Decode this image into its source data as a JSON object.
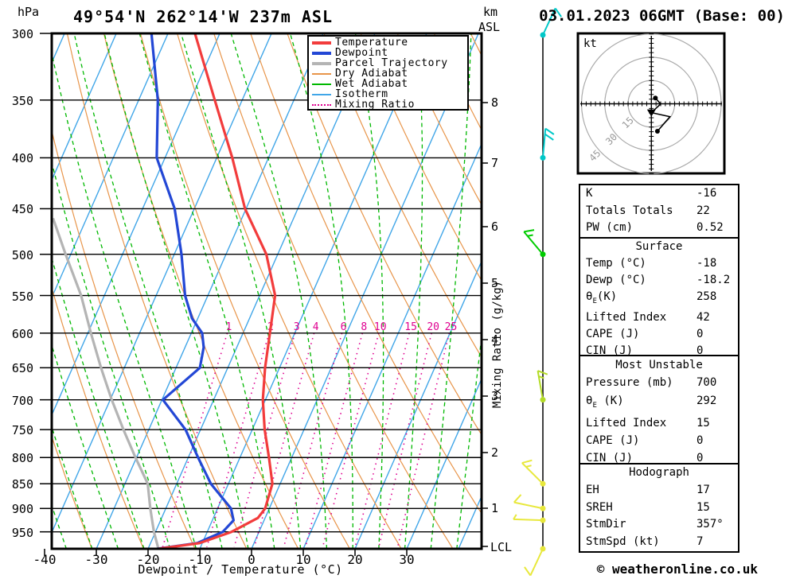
{
  "header": {
    "pressure_unit": "hPa",
    "title": "49°54'N 262°14'W 237m ASL",
    "km_unit": "km",
    "asl": "ASL",
    "datetime": "03.01.2023 06GMT (Base: 00)"
  },
  "footer": {
    "credit": "© weatheronline.co.uk"
  },
  "legend": [
    {
      "label": "Temperature",
      "color": "#f23c3c",
      "thick": true,
      "dotted": false
    },
    {
      "label": "Dewpoint",
      "color": "#2347d5",
      "thick": true,
      "dotted": false
    },
    {
      "label": "Parcel Trajectory",
      "color": "#b4b4b4",
      "thick": true,
      "dotted": false
    },
    {
      "label": "Dry Adiabat",
      "color": "#e8954a",
      "thick": false,
      "dotted": false
    },
    {
      "label": "Wet Adiabat",
      "color": "#00b800",
      "thick": false,
      "dotted": false
    },
    {
      "label": "Isotherm",
      "color": "#41a6e8",
      "thick": false,
      "dotted": false
    },
    {
      "label": "Mixing Ratio",
      "color": "#df0090",
      "thick": false,
      "dotted": true
    }
  ],
  "axes": {
    "pressure_ticks": [
      300,
      350,
      400,
      450,
      500,
      550,
      600,
      650,
      700,
      750,
      800,
      850,
      900,
      950
    ],
    "temp_ticks": [
      -40,
      -30,
      -20,
      -10,
      0,
      10,
      20,
      30
    ],
    "xlabel": "Dewpoint / Temperature (°C)",
    "mixing_axis_label": "Mixing Ratio (g/kg)",
    "km_ticks": [
      8,
      7,
      6,
      5,
      4,
      3,
      2,
      1
    ],
    "lcl_label": "LCL"
  },
  "chart_data": {
    "type": "line",
    "chart_kind": "skew-t-log-p-sounding",
    "pressure_axis": {
      "unit": "hPa",
      "top": 300,
      "surface": 988,
      "ticks": [
        300,
        350,
        400,
        450,
        500,
        550,
        600,
        650,
        700,
        750,
        800,
        850,
        900,
        950
      ]
    },
    "temp_axis": {
      "unit": "°C",
      "min": -40,
      "max": 30,
      "ticks": [
        -40,
        -30,
        -20,
        -10,
        0,
        10,
        20,
        30
      ]
    },
    "isotherm_step": 10,
    "dry_adiabat_step": 10,
    "wet_adiabat_step": 5,
    "series": [
      {
        "name": "Temperature",
        "color": "#f23c3c",
        "points": [
          [
            300,
            -54.8
          ],
          [
            350,
            -45.3
          ],
          [
            400,
            -37.0
          ],
          [
            450,
            -30.2
          ],
          [
            500,
            -22.2
          ],
          [
            550,
            -17.0
          ],
          [
            600,
            -14.8
          ],
          [
            650,
            -12.8
          ],
          [
            700,
            -10.5
          ],
          [
            750,
            -7.6
          ],
          [
            800,
            -4.4
          ],
          [
            850,
            -1.5
          ],
          [
            900,
            -0.8
          ],
          [
            920,
            -1.4
          ],
          [
            950,
            -5.3
          ],
          [
            975,
            -10.5
          ],
          [
            988,
            -18.0
          ]
        ]
      },
      {
        "name": "Dewpoint",
        "color": "#2347d5",
        "points": [
          [
            300,
            -63.2
          ],
          [
            350,
            -56.3
          ],
          [
            400,
            -51.6
          ],
          [
            450,
            -43.8
          ],
          [
            500,
            -38.6
          ],
          [
            550,
            -34.4
          ],
          [
            580,
            -31.1
          ],
          [
            600,
            -27.9
          ],
          [
            620,
            -26.4
          ],
          [
            650,
            -25.4
          ],
          [
            700,
            -29.8
          ],
          [
            750,
            -22.9
          ],
          [
            800,
            -18.1
          ],
          [
            850,
            -13.4
          ],
          [
            900,
            -7.4
          ],
          [
            925,
            -5.9
          ],
          [
            950,
            -7.0
          ],
          [
            975,
            -11.0
          ],
          [
            988,
            -18.2
          ]
        ]
      },
      {
        "name": "Parcel Trajectory",
        "color": "#b4b4b4",
        "points": [
          [
            988,
            -18.0
          ],
          [
            950,
            -20.3
          ],
          [
            900,
            -23.0
          ],
          [
            850,
            -25.6
          ],
          [
            800,
            -30.2
          ],
          [
            750,
            -34.9
          ],
          [
            700,
            -39.7
          ],
          [
            650,
            -44.5
          ],
          [
            600,
            -49.4
          ],
          [
            550,
            -54.5
          ],
          [
            500,
            -61.0
          ],
          [
            460,
            -66.5
          ]
        ]
      }
    ],
    "mixing_ratio_lines": {
      "values": [
        1,
        2,
        3,
        4,
        6,
        8,
        10,
        15,
        20,
        25
      ],
      "label_pressure": 600,
      "color": "#df0090"
    },
    "km_axis": {
      "unit": "km",
      "labels": [
        8,
        7,
        6,
        5,
        4,
        3,
        2,
        1
      ],
      "lcl": "LCL"
    },
    "wind_barbs": [
      {
        "p": 300,
        "speed_kt": 15,
        "dir_deg": 25,
        "color": "#00c8c8"
      },
      {
        "p": 400,
        "speed_kt": 20,
        "dir_deg": 5,
        "color": "#00c8c8"
      },
      {
        "p": 500,
        "speed_kt": 15,
        "dir_deg": 320,
        "color": "#00cc00"
      },
      {
        "p": 700,
        "speed_kt": 15,
        "dir_deg": 350,
        "color": "#b4dc28"
      },
      {
        "p": 850,
        "speed_kt": 15,
        "dir_deg": 315,
        "color": "#e8e83c"
      },
      {
        "p": 900,
        "speed_kt": 10,
        "dir_deg": 282,
        "color": "#e8e83c"
      },
      {
        "p": 925,
        "speed_kt": 5,
        "dir_deg": 272,
        "color": "#e8e83c"
      },
      {
        "p": 988,
        "speed_kt": 10,
        "dir_deg": 205,
        "color": "#e8e83c"
      }
    ],
    "hodograph": {
      "unit": "kt",
      "rings_kt": [
        15,
        30,
        45
      ],
      "trace_uv_kt": [
        [
          2.6,
          3.7
        ],
        [
          6.0,
          -0.1
        ],
        [
          0.0,
          -5.7
        ],
        [
          12.0,
          -8.3
        ],
        [
          3.9,
          -17.7
        ]
      ],
      "storm_point_index": 2
    }
  },
  "tables": {
    "sections": [
      {
        "title": null,
        "rows": [
          [
            "K",
            "-16"
          ],
          [
            "Totals Totals",
            "22"
          ],
          [
            "PW (cm)",
            "0.52"
          ]
        ]
      },
      {
        "title": "Surface",
        "rows": [
          [
            "Temp (°C)",
            "-18"
          ],
          [
            "Dewp (°C)",
            "-18.2"
          ],
          [
            "θ_E(K)",
            "258"
          ],
          [
            "Lifted Index",
            "42"
          ],
          [
            "CAPE (J)",
            "0"
          ],
          [
            "CIN (J)",
            "0"
          ]
        ]
      },
      {
        "title": "Most Unstable",
        "rows": [
          [
            "Pressure (mb)",
            "700"
          ],
          [
            "θ_E (K)",
            "292"
          ],
          [
            "Lifted Index",
            "15"
          ],
          [
            "CAPE (J)",
            "0"
          ],
          [
            "CIN (J)",
            "0"
          ]
        ]
      },
      {
        "title": "Hodograph",
        "rows": [
          [
            "EH",
            "17"
          ],
          [
            "SREH",
            "15"
          ],
          [
            "StmDir",
            "357°"
          ],
          [
            "StmSpd (kt)",
            "7"
          ]
        ]
      }
    ]
  }
}
